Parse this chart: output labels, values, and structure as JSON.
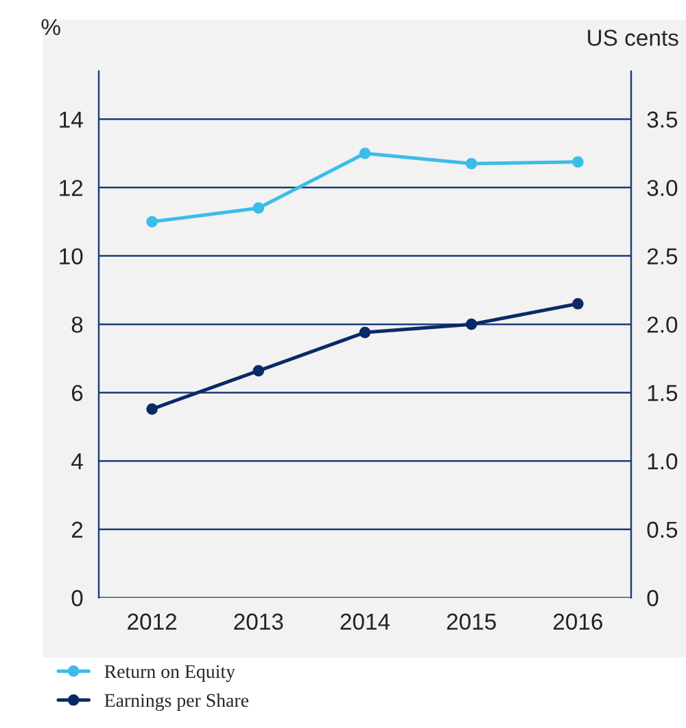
{
  "chart_data": {
    "type": "line",
    "categories": [
      "2012",
      "2013",
      "2014",
      "2015",
      "2016"
    ],
    "series": [
      {
        "name": "Return on Equity",
        "color": "#3bbde8",
        "values": [
          11.0,
          11.4,
          13.0,
          12.7,
          12.75
        ]
      },
      {
        "name": "Earnings per Share",
        "color": "#0a2a66",
        "axis": "y2",
        "values": [
          1.38,
          1.66,
          1.94,
          2.0,
          2.15
        ]
      }
    ],
    "ylabel": "%",
    "y2label": "US cents",
    "ylim": [
      0,
      15.4
    ],
    "yticks": [
      0,
      2,
      4,
      6,
      8,
      10,
      12,
      14
    ],
    "y2lim": [
      0,
      3.85
    ],
    "y2ticks": [
      0,
      {
        "value": 0.5,
        "label": "0.5"
      },
      {
        "value": 1,
        "label": "1.0"
      },
      {
        "value": 1.5,
        "label": "1.5"
      },
      {
        "value": 2,
        "label": "2.0"
      },
      {
        "value": 2.5,
        "label": "2.5"
      },
      {
        "value": 3,
        "label": "3.0"
      },
      {
        "value": 3.5,
        "label": "3.5"
      }
    ],
    "grid": "y",
    "legend": "bottom",
    "marker": "circle",
    "line_style": "solid"
  }
}
